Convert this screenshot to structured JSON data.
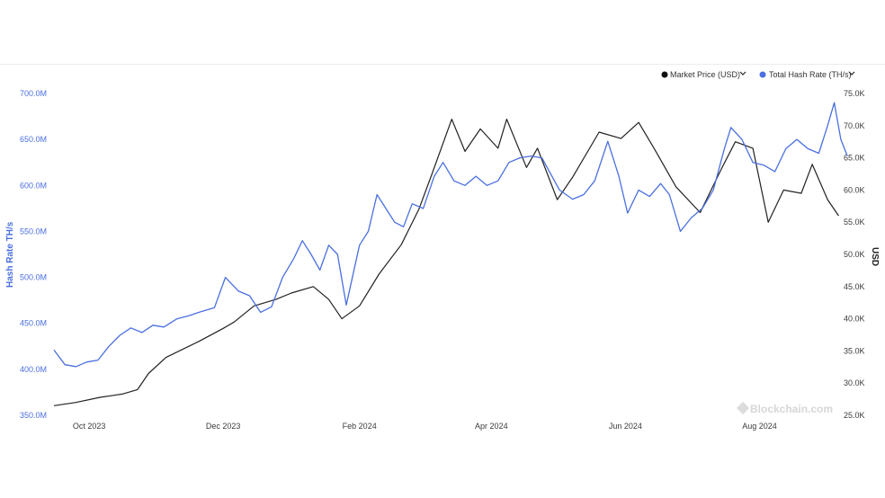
{
  "chart_data": {
    "type": "line",
    "title": "",
    "x_ticks": [
      "Oct 2023",
      "Dec 2023",
      "Feb 2024",
      "Apr 2024",
      "Jun 2024",
      "Aug 2024"
    ],
    "y_left": {
      "label": "Hash Rate TH/s",
      "ticks": [
        "350.0M",
        "400.0M",
        "450.0M",
        "500.0M",
        "550.0M",
        "600.0M",
        "650.0M",
        "700.0M"
      ],
      "range": [
        350,
        700
      ],
      "unit": "M TH/s"
    },
    "y_right": {
      "label": "USD",
      "ticks": [
        "25.0K",
        "30.0K",
        "35.0K",
        "40.0K",
        "45.0K",
        "50.0K",
        "55.0K",
        "60.0K",
        "65.0K",
        "70.0K",
        "75.0K"
      ],
      "range": [
        25,
        75
      ],
      "unit": "K USD"
    },
    "x_range": [
      "2023-09-15",
      "2024-09-05"
    ],
    "legend": {
      "placement": "top-right",
      "items": [
        {
          "label": "Market Price (USD)",
          "color": "#111111"
        },
        {
          "label": "Total Hash Rate (TH/s)",
          "color": "#4a6fe0"
        }
      ]
    },
    "series": [
      {
        "name": "Market Price (USD)",
        "axis": "right",
        "color": "#222222",
        "points": [
          [
            "2023-09-15",
            26.5
          ],
          [
            "2023-09-25",
            27.0
          ],
          [
            "2023-10-06",
            27.8
          ],
          [
            "2023-10-16",
            28.3
          ],
          [
            "2023-10-23",
            29.0
          ],
          [
            "2023-10-28",
            31.5
          ],
          [
            "2023-11-05",
            34.0
          ],
          [
            "2023-11-20",
            36.5
          ],
          [
            "2023-12-01",
            38.5
          ],
          [
            "2023-12-06",
            39.5
          ],
          [
            "2023-12-15",
            42.0
          ],
          [
            "2023-12-25",
            43.0
          ],
          [
            "2024-01-01",
            44.0
          ],
          [
            "2024-01-11",
            45.0
          ],
          [
            "2024-01-18",
            43.0
          ],
          [
            "2024-01-24",
            40.0
          ],
          [
            "2024-02-01",
            42.0
          ],
          [
            "2024-02-10",
            47.0
          ],
          [
            "2024-02-20",
            51.5
          ],
          [
            "2024-02-28",
            57.0
          ],
          [
            "2024-03-05",
            62.5
          ],
          [
            "2024-03-14",
            71.0
          ],
          [
            "2024-03-20",
            66.0
          ],
          [
            "2024-03-27",
            69.5
          ],
          [
            "2024-04-04",
            66.5
          ],
          [
            "2024-04-08",
            71.0
          ],
          [
            "2024-04-17",
            63.5
          ],
          [
            "2024-04-22",
            66.5
          ],
          [
            "2024-05-01",
            58.5
          ],
          [
            "2024-05-08",
            62.0
          ],
          [
            "2024-05-20",
            69.0
          ],
          [
            "2024-05-30",
            68.0
          ],
          [
            "2024-06-07",
            70.5
          ],
          [
            "2024-06-14",
            66.5
          ],
          [
            "2024-06-24",
            60.5
          ],
          [
            "2024-07-05",
            56.5
          ],
          [
            "2024-07-15",
            63.5
          ],
          [
            "2024-07-21",
            67.5
          ],
          [
            "2024-07-29",
            66.5
          ],
          [
            "2024-08-05",
            55.0
          ],
          [
            "2024-08-12",
            60.0
          ],
          [
            "2024-08-20",
            59.5
          ],
          [
            "2024-08-25",
            64.0
          ],
          [
            "2024-09-01",
            58.5
          ],
          [
            "2024-09-06",
            56.0
          ]
        ]
      },
      {
        "name": "Total Hash Rate (TH/s)",
        "axis": "left",
        "color": "#4a6fe0",
        "points": [
          [
            "2023-09-15",
            421
          ],
          [
            "2023-09-20",
            405
          ],
          [
            "2023-09-25",
            403
          ],
          [
            "2023-09-30",
            408
          ],
          [
            "2023-10-05",
            410
          ],
          [
            "2023-10-10",
            425
          ],
          [
            "2023-10-15",
            437
          ],
          [
            "2023-10-20",
            445
          ],
          [
            "2023-10-25",
            440
          ],
          [
            "2023-10-30",
            448
          ],
          [
            "2023-11-04",
            446
          ],
          [
            "2023-11-10",
            455
          ],
          [
            "2023-11-15",
            458
          ],
          [
            "2023-11-20",
            462
          ],
          [
            "2023-11-27",
            467
          ],
          [
            "2023-12-02",
            500
          ],
          [
            "2023-12-08",
            485
          ],
          [
            "2023-12-13",
            480
          ],
          [
            "2023-12-18",
            462
          ],
          [
            "2023-12-23",
            468
          ],
          [
            "2023-12-28",
            500
          ],
          [
            "2024-01-02",
            520
          ],
          [
            "2024-01-06",
            540
          ],
          [
            "2024-01-10",
            525
          ],
          [
            "2024-01-14",
            508
          ],
          [
            "2024-01-18",
            535
          ],
          [
            "2024-01-22",
            525
          ],
          [
            "2024-01-26",
            470
          ],
          [
            "2024-02-01",
            535
          ],
          [
            "2024-02-05",
            550
          ],
          [
            "2024-02-09",
            590
          ],
          [
            "2024-02-13",
            575
          ],
          [
            "2024-02-17",
            560
          ],
          [
            "2024-02-21",
            555
          ],
          [
            "2024-02-25",
            580
          ],
          [
            "2024-03-01",
            575
          ],
          [
            "2024-03-06",
            610
          ],
          [
            "2024-03-10",
            625
          ],
          [
            "2024-03-15",
            605
          ],
          [
            "2024-03-20",
            600
          ],
          [
            "2024-03-25",
            610
          ],
          [
            "2024-03-30",
            600
          ],
          [
            "2024-04-04",
            605
          ],
          [
            "2024-04-09",
            625
          ],
          [
            "2024-04-14",
            630
          ],
          [
            "2024-04-19",
            632
          ],
          [
            "2024-04-24",
            630
          ],
          [
            "2024-05-02",
            595
          ],
          [
            "2024-05-08",
            585
          ],
          [
            "2024-05-13",
            590
          ],
          [
            "2024-05-18",
            605
          ],
          [
            "2024-05-24",
            648
          ],
          [
            "2024-05-29",
            610
          ],
          [
            "2024-06-02",
            570
          ],
          [
            "2024-06-07",
            595
          ],
          [
            "2024-06-12",
            588
          ],
          [
            "2024-06-17",
            602
          ],
          [
            "2024-06-21",
            590
          ],
          [
            "2024-06-26",
            550
          ],
          [
            "2024-07-01",
            565
          ],
          [
            "2024-07-06",
            575
          ],
          [
            "2024-07-11",
            595
          ],
          [
            "2024-07-16",
            640
          ],
          [
            "2024-07-19",
            663
          ],
          [
            "2024-07-24",
            650
          ],
          [
            "2024-07-29",
            625
          ],
          [
            "2024-08-03",
            622
          ],
          [
            "2024-08-08",
            615
          ],
          [
            "2024-08-13",
            640
          ],
          [
            "2024-08-18",
            650
          ],
          [
            "2024-08-23",
            640
          ],
          [
            "2024-08-28",
            635
          ],
          [
            "2024-09-01",
            665
          ],
          [
            "2024-09-04",
            690
          ],
          [
            "2024-09-07",
            650
          ],
          [
            "2024-09-10",
            632
          ]
        ]
      }
    ],
    "watermark": "Blockchain.com",
    "grid": false
  }
}
